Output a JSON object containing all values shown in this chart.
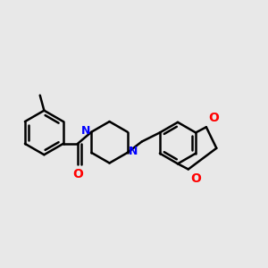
{
  "background_color": "#e8e8e8",
  "bond_color": "#000000",
  "nitrogen_color": "#0000ff",
  "oxygen_color": "#ff0000",
  "line_width": 1.8,
  "figsize": [
    3.0,
    3.0
  ],
  "dpi": 100,
  "xlim": [
    0.02,
    0.98
  ],
  "ylim": [
    0.2,
    0.8
  ]
}
